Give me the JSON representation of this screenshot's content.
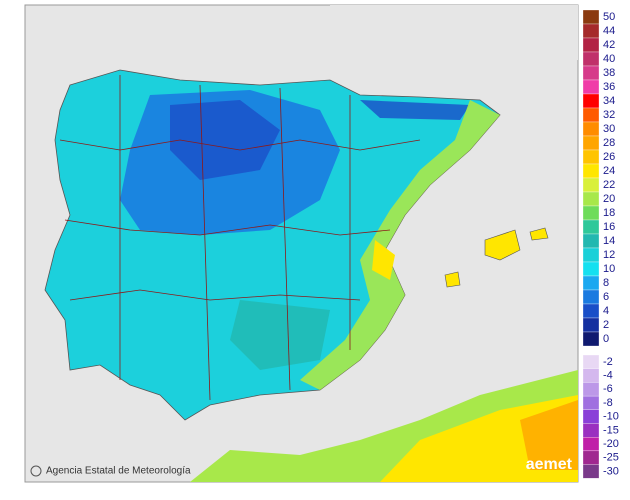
{
  "credit": "Agencia Estatal de Meteorología",
  "logo": "aemet",
  "legend": {
    "positive": [
      {
        "value": 50,
        "color": "#8b3a0f"
      },
      {
        "value": 44,
        "color": "#a52a2a"
      },
      {
        "value": 42,
        "color": "#b22244"
      },
      {
        "value": 40,
        "color": "#c0306a"
      },
      {
        "value": 38,
        "color": "#d63a8a"
      },
      {
        "value": 36,
        "color": "#f03ca8"
      },
      {
        "value": 34,
        "color": "#ff0000"
      },
      {
        "value": 32,
        "color": "#ff5a00"
      },
      {
        "value": 30,
        "color": "#ff8c00"
      },
      {
        "value": 28,
        "color": "#ffa500"
      },
      {
        "value": 26,
        "color": "#ffc400"
      },
      {
        "value": 24,
        "color": "#ffe600"
      },
      {
        "value": 22,
        "color": "#d9f03a"
      },
      {
        "value": 20,
        "color": "#a8e84a"
      },
      {
        "value": 18,
        "color": "#6edc5a"
      },
      {
        "value": 16,
        "color": "#2ec89a"
      },
      {
        "value": 14,
        "color": "#22b8b0"
      },
      {
        "value": 12,
        "color": "#1ad0d8"
      },
      {
        "value": 10,
        "color": "#14e0f0"
      },
      {
        "value": 8,
        "color": "#1aa8f0"
      },
      {
        "value": 6,
        "color": "#1a7ae0"
      },
      {
        "value": 4,
        "color": "#1a4fc8"
      },
      {
        "value": 2,
        "color": "#1530a0"
      },
      {
        "value": 0,
        "color": "#101a70"
      }
    ],
    "negative": [
      {
        "value": -2,
        "color": "#e8d8f4"
      },
      {
        "value": -4,
        "color": "#d4b8ee"
      },
      {
        "value": -6,
        "color": "#bc98e8"
      },
      {
        "value": -8,
        "color": "#a070e0"
      },
      {
        "value": -10,
        "color": "#8a40d8"
      },
      {
        "value": -15,
        "color": "#9a30c0"
      },
      {
        "value": -20,
        "color": "#c020a8"
      },
      {
        "value": -25,
        "color": "#a02890"
      },
      {
        "value": -30,
        "color": "#7a3a8a"
      }
    ]
  }
}
